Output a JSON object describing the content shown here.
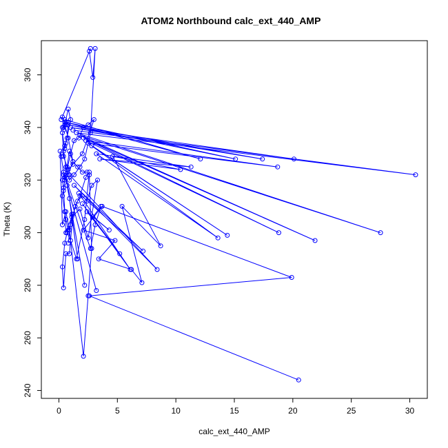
{
  "chart_data": {
    "type": "line",
    "title": "ATOM2 Northbound calc_ext_440_AMP",
    "xlabel": "calc_ext_440_AMP",
    "ylabel": "Theta (K)",
    "xlim": [
      -1.5,
      31.5
    ],
    "ylim": [
      237,
      373
    ],
    "xticks": [
      0,
      5,
      10,
      15,
      20,
      25,
      30
    ],
    "yticks": [
      240,
      260,
      280,
      300,
      320,
      340,
      360
    ],
    "grid": false,
    "color": "#0000ff",
    "marker": "open-circle",
    "series": [
      {
        "x": [
          2.7,
          0.2,
          0.3,
          0.5,
          0.6,
          0.4,
          0.8,
          1.0,
          0.6,
          0.5,
          0.3,
          0.4,
          0.7,
          0.9,
          1.2,
          0.8,
          0.5,
          0.4,
          0.3,
          0.5,
          0.6,
          0.8,
          1.0,
          1.4,
          1.8,
          2.3,
          2.6,
          2.2,
          1.5,
          1.0,
          0.7,
          0.5,
          0.3,
          0.4,
          0.6,
          0.9,
          1.2,
          1.6,
          2.0,
          2.4,
          2.8,
          3.3,
          2.5,
          1.8,
          1.1,
          0.6,
          0.4,
          0.3,
          0.4,
          0.5,
          0.7,
          1.0,
          1.3,
          1.7,
          2.1,
          2.5,
          3.0,
          2.0,
          1.2,
          0.8,
          0.5,
          0.2,
          0.1,
          0.3,
          0.6,
          0.9,
          2.1,
          2.5,
          2.8,
          2.6,
          2.4,
          2.0,
          1.6,
          1.2,
          0.8,
          0.5,
          0.3,
          0.4,
          0.6,
          0.8,
          0.7,
          0.5,
          0.4,
          0.6,
          0.9,
          1.3,
          1.8,
          2.2,
          2.7,
          3.1,
          2.9,
          2.6
        ],
        "y": [
          370,
          343,
          344,
          342,
          341,
          339,
          347,
          343,
          334,
          332,
          338,
          329,
          325,
          331,
          327,
          322,
          320,
          316,
          314,
          308,
          305,
          301,
          303,
          310,
          314,
          321,
          323,
          305,
          290,
          297,
          300,
          296,
          287,
          279,
          292,
          292,
          307,
          312,
          314,
          312,
          318,
          320,
          298,
          309,
          306,
          300,
          317,
          320,
          322,
          321,
          324,
          330,
          335,
          336,
          340,
          341,
          343,
          330,
          326,
          324,
          320,
          329,
          331,
          303,
          308,
          301,
          253,
          276,
          294,
          322,
          323,
          323,
          325,
          327,
          336,
          341,
          340,
          340,
          341,
          342,
          336,
          333,
          331,
          325,
          320,
          322,
          325,
          328,
          338,
          370,
          359,
          369
        ]
      },
      {
        "x": [
          0.5,
          12.1,
          0.6,
          15.1,
          0.8,
          17.4,
          1.0,
          20.1,
          1.2,
          30.5,
          1.5,
          27.5,
          1.8,
          21.9,
          2.1,
          18.8,
          2.3,
          18.7,
          2.5,
          14.4,
          2.8,
          13.6,
          3.2,
          11.3,
          3.5,
          10.4,
          4.6,
          8.7,
          5.4,
          7.1,
          6.2,
          3.4,
          4.8,
          2.1,
          3.7,
          19.9,
          2.6,
          20.5
        ],
        "y": [
          343,
          328,
          342,
          328,
          341,
          328,
          340,
          328,
          339,
          322,
          338,
          300,
          337,
          297,
          336,
          300,
          335,
          325,
          334,
          299,
          333,
          298,
          330,
          325,
          328,
          324,
          329,
          295,
          310,
          281,
          286,
          290,
          297,
          301,
          310,
          283,
          276,
          244
        ]
      },
      {
        "x": [
          0.9,
          8.4,
          1.3,
          7.2,
          1.7,
          6.1,
          2.0,
          5.2,
          2.4,
          4.3,
          2.9,
          3.6,
          3.1,
          2.7,
          0.4,
          3.2,
          0.7,
          2.2,
          0.9,
          1.6,
          1.1,
          0.8
        ],
        "y": [
          322,
          286,
          318,
          293,
          315,
          286,
          311,
          292,
          308,
          301,
          306,
          310,
          303,
          294,
          323,
          278,
          318,
          280,
          313,
          290,
          307,
          296
        ]
      }
    ]
  }
}
